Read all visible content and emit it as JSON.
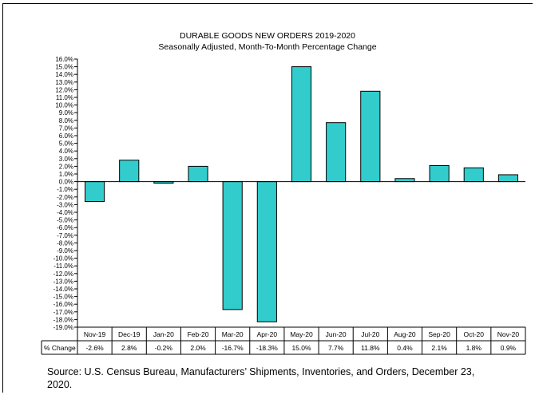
{
  "chart_data": {
    "type": "bar",
    "title": "DURABLE GOODS NEW ORDERS 2019-2020",
    "subtitle": "Seasonally Adjusted,  Month-To-Month  Percentage Change",
    "categories": [
      "Nov-19",
      "Dec-19",
      "Jan-20",
      "Feb-20",
      "Mar-20",
      "Apr-20",
      "May-20",
      "Jun-20",
      "Jul-20",
      "Aug-20",
      "Sep-20",
      "Oct-20",
      "Nov-20"
    ],
    "series": [
      {
        "name": "% Change",
        "values": [
          -2.6,
          2.8,
          -0.2,
          2.0,
          -16.7,
          -18.3,
          15.0,
          7.7,
          11.8,
          0.4,
          2.1,
          1.8,
          0.9
        ]
      }
    ],
    "value_labels": [
      "-2.6%",
      "2.8%",
      "-0.2%",
      "2.0%",
      "-16.7%",
      "-18.3%",
      "15.0%",
      "7.7%",
      "11.8%",
      "0.4%",
      "2.1%",
      "1.8%",
      "0.9%"
    ],
    "ylim": [
      -19,
      16
    ],
    "y_step": 1,
    "bar_color": "#33CCCC",
    "grid": false,
    "legend": "data-table"
  },
  "source_note": "Source: U.S. Census Bureau, Manufacturers’ Shipments, Inventories, and Orders, December 23, 2020."
}
